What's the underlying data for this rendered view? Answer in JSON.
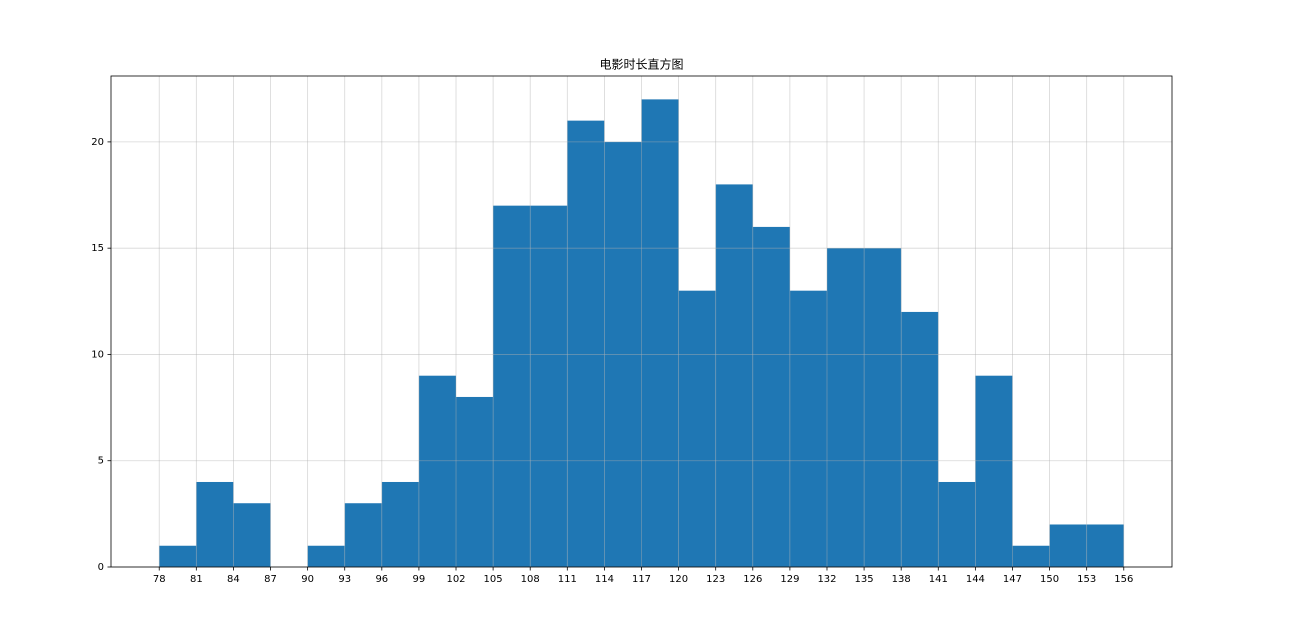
{
  "chart_data": {
    "type": "histogram",
    "title": "电影时长直方图",
    "bins": [
      78,
      81,
      84,
      87,
      90,
      93,
      96,
      99,
      102,
      105,
      108,
      111,
      114,
      117,
      120,
      123,
      126,
      129,
      132,
      135,
      138,
      141,
      144,
      147,
      150,
      153,
      156
    ],
    "values": [
      1,
      4,
      3,
      0,
      1,
      3,
      4,
      9,
      8,
      17,
      17,
      21,
      20,
      22,
      13,
      18,
      16,
      13,
      15,
      15,
      12,
      4,
      9,
      1,
      2,
      2
    ],
    "color": "#1f77b4",
    "xlim": [
      74.1,
      159.9
    ],
    "xticks": [
      78,
      81,
      84,
      87,
      90,
      93,
      96,
      99,
      102,
      105,
      108,
      111,
      114,
      117,
      120,
      123,
      126,
      129,
      132,
      135,
      138,
      141,
      144,
      147,
      150,
      153,
      156
    ],
    "ylim": [
      0,
      23.1
    ],
    "yticks": [
      0,
      5,
      10,
      15,
      20
    ],
    "grid": true
  }
}
